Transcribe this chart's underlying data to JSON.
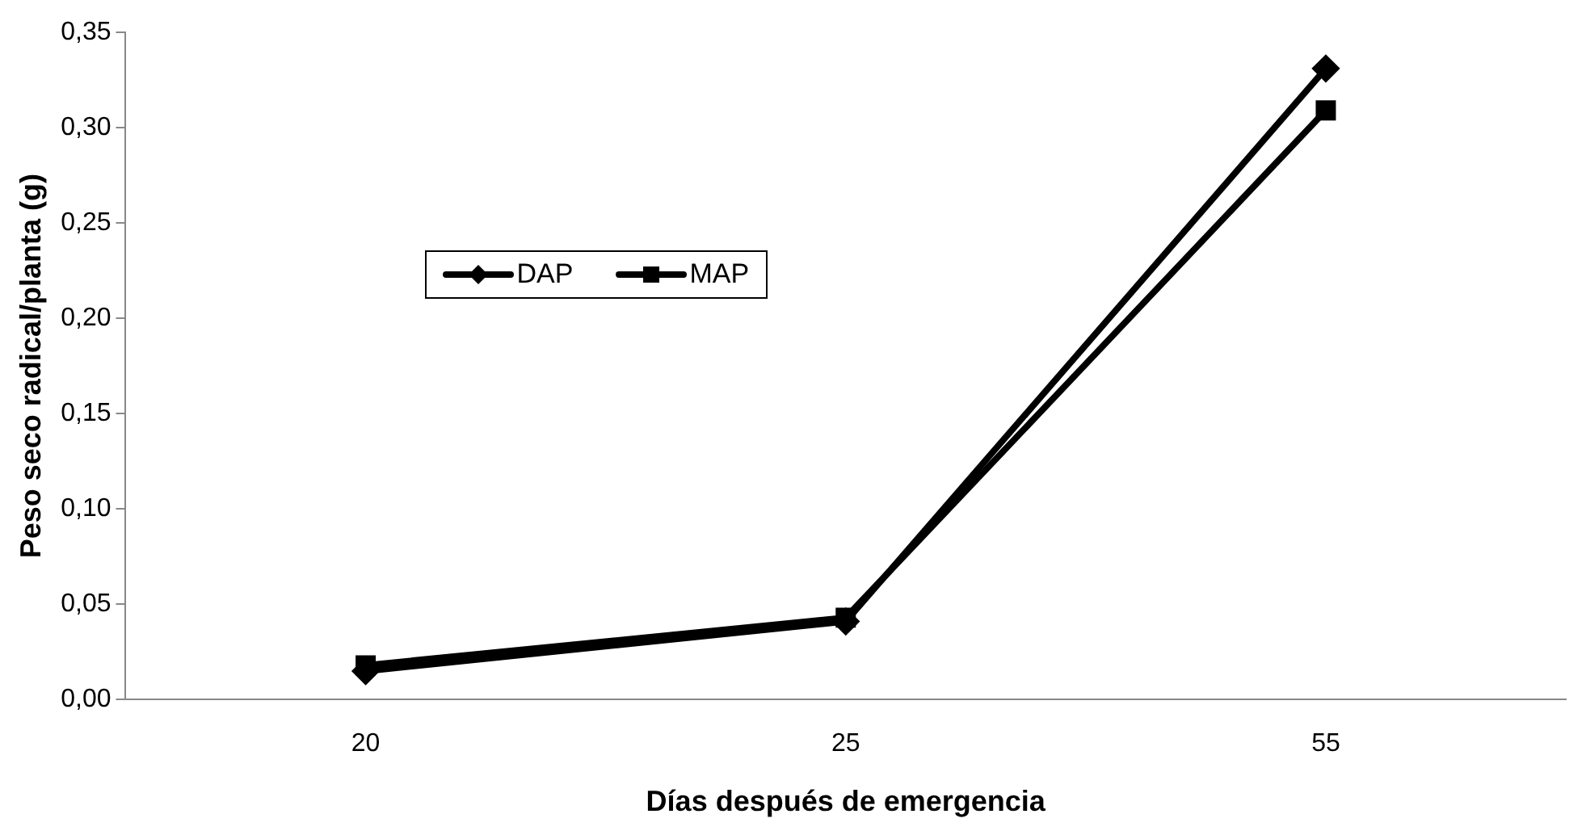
{
  "chart_data": {
    "type": "line",
    "xlabel": "Días después de emergencia",
    "ylabel": "Peso seco radical/planta (g)",
    "categories": [
      "20",
      "25",
      "55"
    ],
    "series": [
      {
        "name": "DAP",
        "color": "#000000",
        "marker": "diamond",
        "values": [
          0.015,
          0.041,
          0.331
        ]
      },
      {
        "name": "MAP",
        "color": "#000000",
        "marker": "square",
        "values": [
          0.018,
          0.043,
          0.309
        ]
      }
    ],
    "ylim": [
      0,
      0.35
    ],
    "yticks": [
      {
        "value": 0,
        "label": "0,00"
      },
      {
        "value": 0.05,
        "label": "0,05"
      },
      {
        "value": 0.1,
        "label": "0,10"
      },
      {
        "value": 0.15,
        "label": "0,15"
      },
      {
        "value": 0.2,
        "label": "0,20"
      },
      {
        "value": 0.25,
        "label": "0,25"
      },
      {
        "value": 0.3,
        "label": "0,30"
      },
      {
        "value": 0.35,
        "label": "0,35"
      }
    ],
    "grid": false,
    "legend": "top left",
    "line_style": "solid"
  }
}
